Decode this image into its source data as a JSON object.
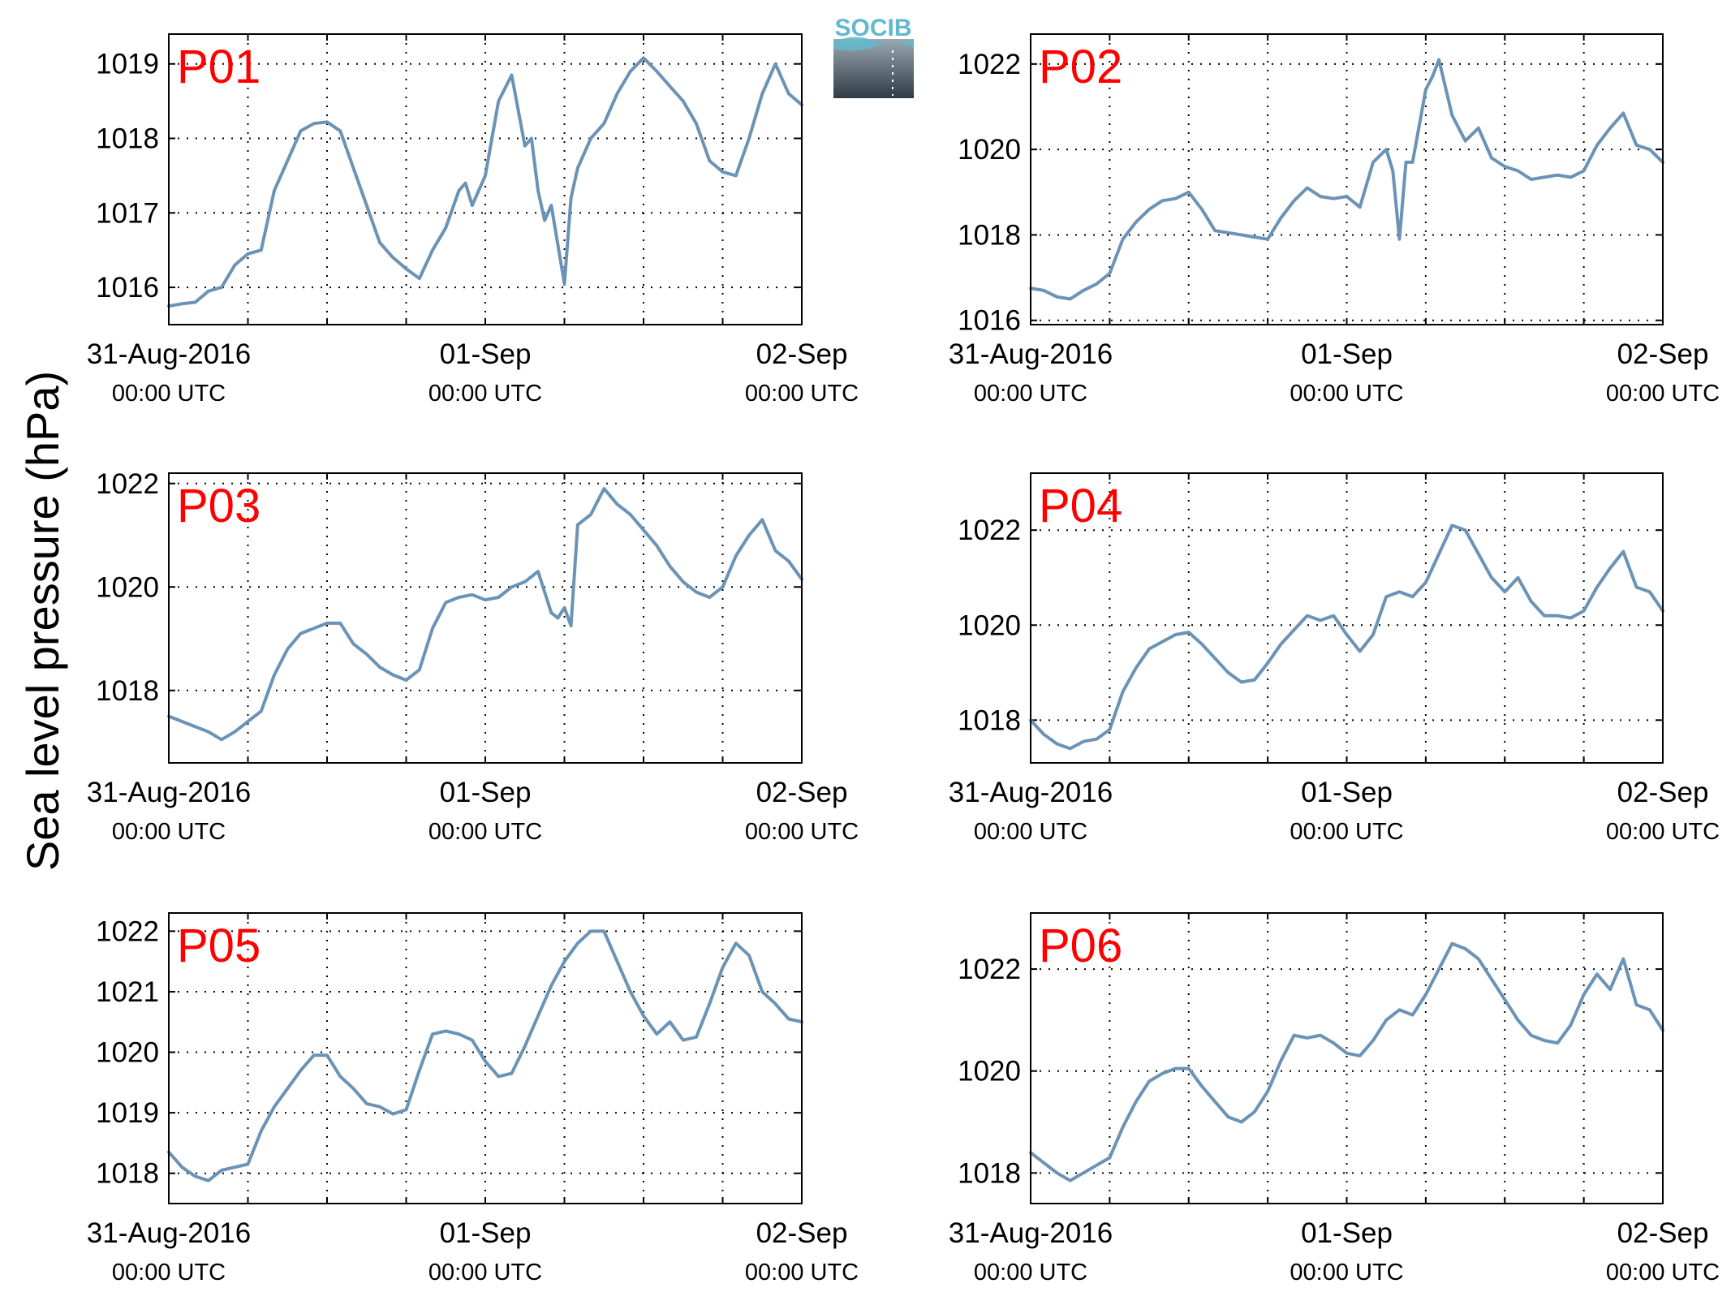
{
  "ylabel": "Sea level pressure (hPa)",
  "logo": {
    "text": "SOCIB",
    "color": "#63b9cc"
  },
  "colors": {
    "line": "#6b93b6",
    "panel_label": "#ff0000",
    "axis": "#000000",
    "grid": "#000000"
  },
  "x_ticks": [
    {
      "date": "31-Aug-2016",
      "time": "00:00 UTC"
    },
    {
      "date": "01-Sep",
      "time": "00:00 UTC"
    },
    {
      "date": "02-Sep",
      "time": "00:00 UTC"
    }
  ],
  "chart_data": [
    {
      "type": "line",
      "label": "P01",
      "grid": true,
      "x_unit": "hours since 31-Aug-2016 00:00 UTC",
      "xlim": [
        0,
        48
      ],
      "x_gridlines_every_hours": 6,
      "ylim": [
        1015.5,
        1019.4
      ],
      "yticks": [
        1016,
        1017,
        1018,
        1019
      ],
      "x": [
        0,
        1,
        2,
        3,
        4,
        5,
        6,
        7,
        8,
        9,
        10,
        11,
        12,
        13,
        14,
        15,
        16,
        17,
        18,
        19,
        20,
        21,
        22,
        22.5,
        23,
        24,
        25,
        26,
        27,
        27.5,
        28,
        28.5,
        29,
        30,
        30.5,
        31,
        32,
        33,
        34,
        35,
        36,
        37,
        38,
        39,
        40,
        41,
        42,
        43,
        44,
        45,
        46,
        47,
        48
      ],
      "y": [
        1015.75,
        1015.78,
        1015.8,
        1015.95,
        1016.0,
        1016.3,
        1016.45,
        1016.5,
        1017.3,
        1017.7,
        1018.1,
        1018.2,
        1018.22,
        1018.1,
        1017.6,
        1017.1,
        1016.6,
        1016.4,
        1016.25,
        1016.12,
        1016.5,
        1016.8,
        1017.3,
        1017.4,
        1017.1,
        1017.5,
        1018.5,
        1018.85,
        1017.9,
        1018.0,
        1017.3,
        1016.9,
        1017.1,
        1016.05,
        1017.2,
        1017.6,
        1018.0,
        1018.2,
        1018.6,
        1018.9,
        1019.08,
        1018.9,
        1018.7,
        1018.5,
        1018.2,
        1017.7,
        1017.55,
        1017.5,
        1018.0,
        1018.6,
        1019.0,
        1018.6,
        1018.45
      ]
    },
    {
      "type": "line",
      "label": "P02",
      "grid": true,
      "x_unit": "hours since 31-Aug-2016 00:00 UTC",
      "xlim": [
        0,
        48
      ],
      "x_gridlines_every_hours": 6,
      "ylim": [
        1015.9,
        1022.7
      ],
      "yticks": [
        1016,
        1018,
        1020,
        1022
      ],
      "x": [
        0,
        1,
        2,
        3,
        4,
        5,
        6,
        7,
        8,
        9,
        10,
        11,
        12,
        13,
        14,
        15,
        16,
        17,
        18,
        19,
        20,
        21,
        22,
        23,
        24,
        25,
        26,
        27,
        27.5,
        28,
        28.5,
        29,
        30,
        30.5,
        31,
        32,
        33,
        34,
        35,
        36,
        37,
        38,
        39,
        40,
        41,
        42,
        43,
        44,
        45,
        46,
        47,
        48
      ],
      "y": [
        1016.75,
        1016.7,
        1016.55,
        1016.5,
        1016.7,
        1016.85,
        1017.1,
        1017.9,
        1018.3,
        1018.6,
        1018.8,
        1018.85,
        1019.0,
        1018.6,
        1018.1,
        1018.05,
        1018.0,
        1017.95,
        1017.9,
        1018.4,
        1018.8,
        1019.1,
        1018.9,
        1018.85,
        1018.9,
        1018.65,
        1019.7,
        1020.0,
        1019.5,
        1017.9,
        1019.7,
        1019.7,
        1021.4,
        1021.7,
        1022.1,
        1020.8,
        1020.2,
        1020.5,
        1019.8,
        1019.6,
        1019.5,
        1019.3,
        1019.35,
        1019.4,
        1019.35,
        1019.5,
        1020.1,
        1020.5,
        1020.85,
        1020.1,
        1020.0,
        1019.7
      ]
    },
    {
      "type": "line",
      "label": "P03",
      "grid": true,
      "x_unit": "hours since 31-Aug-2016 00:00 UTC",
      "xlim": [
        0,
        48
      ],
      "x_gridlines_every_hours": 6,
      "ylim": [
        1016.6,
        1022.2
      ],
      "yticks": [
        1018,
        1020,
        1022
      ],
      "x": [
        0,
        1,
        2,
        3,
        4,
        5,
        6,
        7,
        8,
        9,
        10,
        11,
        12,
        13,
        14,
        15,
        16,
        17,
        18,
        19,
        20,
        21,
        22,
        23,
        24,
        25,
        26,
        27,
        28,
        29,
        29.5,
        30,
        30.5,
        31,
        32,
        33,
        34,
        35,
        36,
        37,
        38,
        39,
        40,
        41,
        42,
        43,
        44,
        45,
        46,
        47,
        48
      ],
      "y": [
        1017.5,
        1017.4,
        1017.3,
        1017.2,
        1017.05,
        1017.2,
        1017.4,
        1017.6,
        1018.3,
        1018.8,
        1019.1,
        1019.2,
        1019.3,
        1019.3,
        1018.9,
        1018.7,
        1018.45,
        1018.3,
        1018.2,
        1018.4,
        1019.2,
        1019.7,
        1019.8,
        1019.85,
        1019.75,
        1019.8,
        1020.0,
        1020.1,
        1020.3,
        1019.5,
        1019.4,
        1019.6,
        1019.25,
        1021.2,
        1021.4,
        1021.9,
        1021.6,
        1021.4,
        1021.1,
        1020.8,
        1020.4,
        1020.1,
        1019.9,
        1019.8,
        1020.0,
        1020.6,
        1021.0,
        1021.3,
        1020.7,
        1020.5,
        1020.15
      ]
    },
    {
      "type": "line",
      "label": "P04",
      "grid": true,
      "x_unit": "hours since 31-Aug-2016 00:00 UTC",
      "xlim": [
        0,
        48
      ],
      "x_gridlines_every_hours": 6,
      "ylim": [
        1017.1,
        1023.2
      ],
      "yticks": [
        1018,
        1020,
        1022
      ],
      "x": [
        0,
        1,
        2,
        3,
        4,
        5,
        6,
        7,
        8,
        9,
        10,
        11,
        12,
        13,
        14,
        15,
        16,
        17,
        18,
        19,
        20,
        21,
        22,
        23,
        24,
        25,
        26,
        27,
        28,
        29,
        30,
        31,
        32,
        33,
        34,
        35,
        36,
        37,
        38,
        39,
        40,
        41,
        42,
        43,
        44,
        45,
        46,
        47,
        48
      ],
      "y": [
        1018.0,
        1017.7,
        1017.5,
        1017.4,
        1017.55,
        1017.6,
        1017.8,
        1018.6,
        1019.1,
        1019.5,
        1019.65,
        1019.8,
        1019.85,
        1019.6,
        1019.3,
        1019.0,
        1018.8,
        1018.85,
        1019.2,
        1019.6,
        1019.9,
        1020.2,
        1020.1,
        1020.2,
        1019.8,
        1019.45,
        1019.8,
        1020.6,
        1020.7,
        1020.6,
        1020.9,
        1021.5,
        1022.1,
        1022.0,
        1021.5,
        1021.0,
        1020.7,
        1021.0,
        1020.5,
        1020.2,
        1020.2,
        1020.15,
        1020.3,
        1020.8,
        1021.2,
        1021.55,
        1020.8,
        1020.7,
        1020.3
      ]
    },
    {
      "type": "line",
      "label": "P05",
      "grid": true,
      "x_unit": "hours since 31-Aug-2016 00:00 UTC",
      "xlim": [
        0,
        48
      ],
      "x_gridlines_every_hours": 6,
      "ylim": [
        1017.5,
        1022.3
      ],
      "yticks": [
        1018,
        1019,
        1020,
        1021,
        1022
      ],
      "x": [
        0,
        1,
        2,
        3,
        4,
        5,
        6,
        7,
        8,
        9,
        10,
        11,
        12,
        13,
        14,
        15,
        16,
        17,
        18,
        19,
        20,
        21,
        22,
        23,
        24,
        25,
        26,
        27,
        28,
        29,
        30,
        31,
        32,
        33,
        34,
        35,
        36,
        37,
        38,
        39,
        40,
        41,
        42,
        43,
        44,
        45,
        46,
        47,
        48
      ],
      "y": [
        1018.35,
        1018.1,
        1017.95,
        1017.88,
        1018.05,
        1018.1,
        1018.15,
        1018.7,
        1019.1,
        1019.4,
        1019.7,
        1019.95,
        1019.95,
        1019.6,
        1019.4,
        1019.15,
        1019.1,
        1018.98,
        1019.05,
        1019.7,
        1020.3,
        1020.35,
        1020.3,
        1020.2,
        1019.85,
        1019.6,
        1019.65,
        1020.1,
        1020.6,
        1021.1,
        1021.5,
        1021.8,
        1022.0,
        1022.0,
        1021.5,
        1021.0,
        1020.6,
        1020.3,
        1020.5,
        1020.2,
        1020.25,
        1020.8,
        1021.4,
        1021.8,
        1021.6,
        1021.0,
        1020.8,
        1020.55,
        1020.5
      ]
    },
    {
      "type": "line",
      "label": "P06",
      "grid": true,
      "x_unit": "hours since 31-Aug-2016 00:00 UTC",
      "xlim": [
        0,
        48
      ],
      "x_gridlines_every_hours": 6,
      "ylim": [
        1017.4,
        1023.1
      ],
      "yticks": [
        1018,
        1020,
        1022
      ],
      "x": [
        0,
        1,
        2,
        3,
        4,
        5,
        6,
        7,
        8,
        9,
        10,
        11,
        12,
        13,
        14,
        15,
        16,
        17,
        18,
        19,
        20,
        21,
        22,
        23,
        24,
        25,
        26,
        27,
        28,
        29,
        30,
        31,
        32,
        33,
        34,
        35,
        36,
        37,
        38,
        39,
        40,
        41,
        42,
        43,
        44,
        45,
        46,
        47,
        48
      ],
      "y": [
        1018.4,
        1018.2,
        1018.0,
        1017.85,
        1018.0,
        1018.15,
        1018.3,
        1018.9,
        1019.4,
        1019.8,
        1019.95,
        1020.05,
        1020.05,
        1019.7,
        1019.4,
        1019.1,
        1019.0,
        1019.2,
        1019.6,
        1020.2,
        1020.7,
        1020.65,
        1020.7,
        1020.55,
        1020.35,
        1020.3,
        1020.6,
        1021.0,
        1021.2,
        1021.1,
        1021.5,
        1022.0,
        1022.5,
        1022.4,
        1022.2,
        1021.8,
        1021.4,
        1021.0,
        1020.7,
        1020.6,
        1020.55,
        1020.9,
        1021.5,
        1021.9,
        1021.6,
        1022.2,
        1021.3,
        1021.2,
        1020.8
      ]
    }
  ]
}
